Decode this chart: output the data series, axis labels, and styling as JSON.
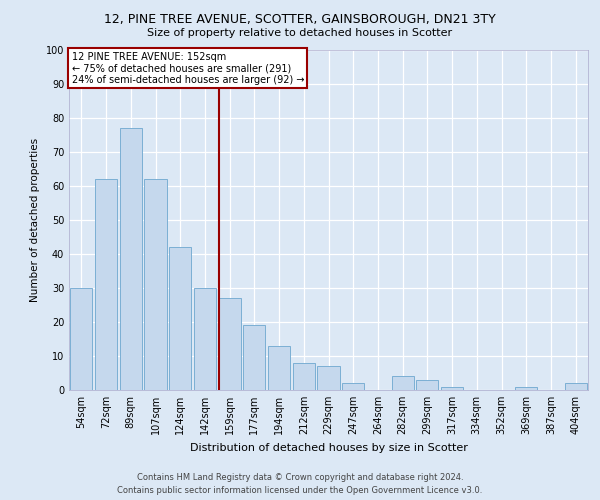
{
  "title1": "12, PINE TREE AVENUE, SCOTTER, GAINSBOROUGH, DN21 3TY",
  "title2": "Size of property relative to detached houses in Scotter",
  "xlabel": "Distribution of detached houses by size in Scotter",
  "ylabel": "Number of detached properties",
  "bar_labels": [
    "54sqm",
    "72sqm",
    "89sqm",
    "107sqm",
    "124sqm",
    "142sqm",
    "159sqm",
    "177sqm",
    "194sqm",
    "212sqm",
    "229sqm",
    "247sqm",
    "264sqm",
    "282sqm",
    "299sqm",
    "317sqm",
    "334sqm",
    "352sqm",
    "369sqm",
    "387sqm",
    "404sqm"
  ],
  "bar_values": [
    30,
    62,
    77,
    62,
    42,
    30,
    27,
    19,
    13,
    8,
    7,
    2,
    0,
    4,
    3,
    1,
    0,
    0,
    1,
    0,
    2
  ],
  "bar_color": "#c5d8ed",
  "bar_edge_color": "#7bafd4",
  "annotation_text_line1": "12 PINE TREE AVENUE: 152sqm",
  "annotation_text_line2": "← 75% of detached houses are smaller (291)",
  "annotation_text_line3": "24% of semi-detached houses are larger (92) →",
  "vline_color": "#990000",
  "box_edge_color": "#990000",
  "footer_line1": "Contains HM Land Registry data © Crown copyright and database right 2024.",
  "footer_line2": "Contains public sector information licensed under the Open Government Licence v3.0.",
  "bg_color": "#dce8f5",
  "plot_bg_color": "#dce8f5",
  "grid_color": "#ffffff",
  "ylim": [
    0,
    100
  ],
  "yticks": [
    0,
    10,
    20,
    30,
    40,
    50,
    60,
    70,
    80,
    90,
    100
  ],
  "vline_bar_index": 6,
  "title1_fontsize": 9,
  "title2_fontsize": 8,
  "xlabel_fontsize": 8,
  "ylabel_fontsize": 7.5,
  "tick_fontsize": 7,
  "annotation_fontsize": 7,
  "footer_fontsize": 6
}
